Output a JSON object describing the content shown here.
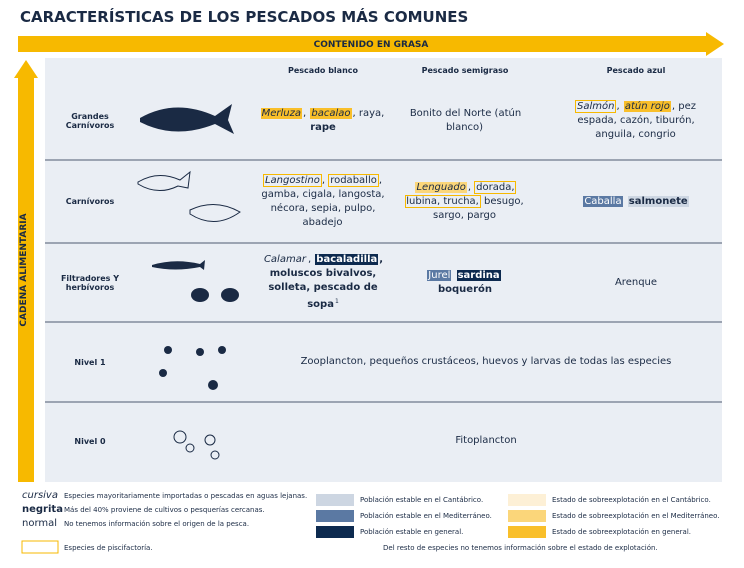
{
  "header": {
    "title": "CARACTERÍSTICAS DE LOS PESCADOS MÁS COMUNES",
    "x_arrow": "CONTENIDO EN GRASA",
    "y_arrow": "CADENA ALIMENTARIA"
  },
  "table": {
    "columns": [
      "Pescado blanco",
      "Pescado semigraso",
      "Pescado azul"
    ],
    "rows": [
      {
        "label": "Grandes Carnívoros",
        "cells": [
          [
            {
              "text": "Merluza",
              "font": "italic",
              "bg": "#f9bf2a"
            },
            {
              "text": ", "
            },
            {
              "text": "bacalao",
              "font": "italic",
              "bg": "#f9bf2a"
            },
            {
              "text": ", raya, "
            },
            {
              "text": "rape",
              "font": "bold"
            }
          ],
          [
            {
              "text": "Bonito del Norte (atún blanco)"
            }
          ],
          [
            {
              "text": "Salmón",
              "font": "italic",
              "farmed": true
            },
            {
              "text": ", "
            },
            {
              "text": "atún rojo",
              "font": "italic",
              "bg": "#f9bf2a"
            },
            {
              "text": ", pez espada, cazón, tiburón, anguila, congrio"
            }
          ]
        ]
      },
      {
        "label": "Carnívoros",
        "cells": [
          [
            {
              "text": "Langostino",
              "font": "italic",
              "farmed": true
            },
            {
              "text": ", "
            },
            {
              "text": "rodaballo",
              "farmed": true
            },
            {
              "text": ", gamba, cigala, langosta, nécora, sepia, pulpo, abadejo"
            }
          ],
          [
            {
              "text": "Lenguado",
              "font": "italic",
              "bg": "#fbd67a"
            },
            {
              "text": ", "
            },
            {
              "text": "dorada, lubina, trucha,",
              "farmed": true
            },
            {
              "text": " besugo, sargo, pargo"
            }
          ],
          [
            {
              "text": "Caballa",
              "bg": "#5b79a3",
              "color": "#ffffff"
            },
            {
              "text": " "
            },
            {
              "text": "salmonete",
              "font": "bold",
              "bg": "#cdd6e2"
            }
          ]
        ]
      },
      {
        "label": "Filtradores Y herbívoros",
        "cells": [
          [
            {
              "text": "Calamar",
              "font": "italic"
            },
            {
              "text": ", "
            },
            {
              "text": "bacaladilla",
              "font": "bold",
              "bg": "#0d2a4f",
              "color": "#ffffff"
            },
            {
              "text": ", moluscos bivalvos, solleta, pescado de sopa",
              "font": "bold"
            },
            {
              "text": "1",
              "sup": true
            }
          ],
          [
            {
              "text": "Jurel",
              "bg": "#5b79a3",
              "color": "#ffffff"
            },
            {
              "text": " "
            },
            {
              "text": "sardina",
              "font": "bold",
              "bg": "#0d2a4f",
              "color": "#ffffff"
            },
            {
              "text": " "
            },
            {
              "text": "boquerón",
              "font": "bold"
            }
          ],
          [
            {
              "text": "Arenque"
            }
          ]
        ]
      },
      {
        "label": "Nivel 1",
        "cells": [
          [
            {
              "text": "Zooplancton, pequeños crustáceos, huevos y larvas de todas las especies"
            }
          ]
        ]
      },
      {
        "label": "Nivel 0",
        "cells": [
          [
            {
              "text": "Fitoplancton"
            }
          ]
        ]
      }
    ]
  },
  "legend": {
    "styles": [
      {
        "sample": "cursiva",
        "font": "italic",
        "text": "Especies mayoritariamente importadas o pescadas en aguas lejanas."
      },
      {
        "sample": "negrita",
        "font": "bold",
        "text": "Más del 40% proviene de cultivos o pesquerías cercanas."
      },
      {
        "sample": "normal",
        "text": "No tenemos información sobre el origen de la pesca."
      }
    ],
    "farmed": "Especies de piscifactoría.",
    "colors": [
      {
        "color": "#cdd6e2",
        "text": "Población estable en el Cantábrico."
      },
      {
        "color": "#5b79a3",
        "text": "Población estable en el Mediterráneo."
      },
      {
        "color": "#0d2a4f",
        "text": "Población estable en general."
      },
      {
        "color": "#fdf0d6",
        "text": "Estado de sobreexplotación en el Cantábrico."
      },
      {
        "color": "#fbd67a",
        "text": "Estado de sobreexplotación en el Mediterráneo."
      },
      {
        "color": "#f9bf2a",
        "text": "Estado de sobreexplotación en general."
      }
    ],
    "footnote": "Del resto de especies no tenemos información sobre el estado de explotación."
  }
}
